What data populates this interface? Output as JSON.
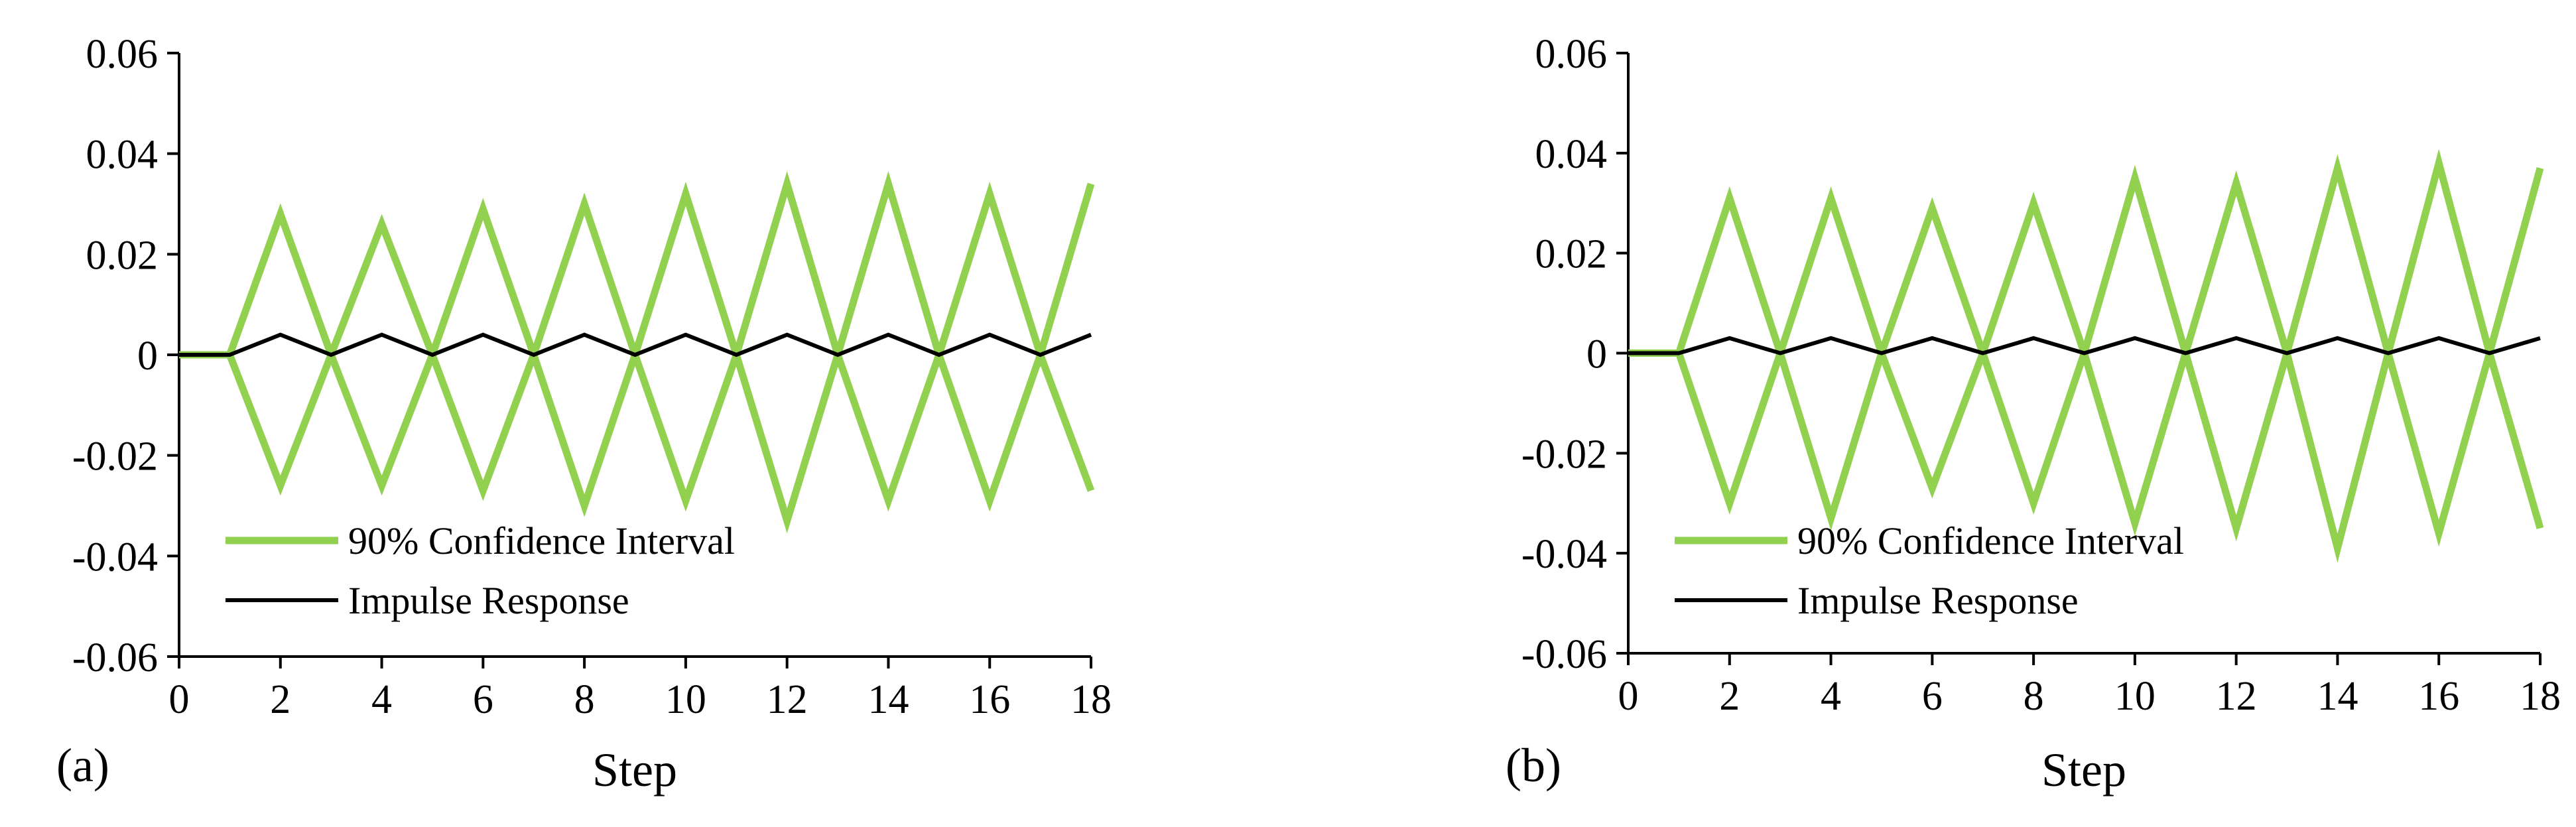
{
  "colors": {
    "ci": "#92d050",
    "impulse": "#000000",
    "axis": "#000000"
  },
  "chart_data": [
    {
      "panel_label": "(a)",
      "type": "line",
      "xlabel": "Step",
      "ylabel": "",
      "xlim": [
        0,
        18
      ],
      "ylim": [
        -0.06,
        0.06
      ],
      "x_ticks": [
        "0",
        "2",
        "4",
        "6",
        "8",
        "10",
        "12",
        "14",
        "16",
        "18"
      ],
      "y_ticks": [
        "0.06",
        "0.04",
        "0.02",
        "0",
        "-0.02",
        "-0.04",
        "-0.06"
      ],
      "legend": {
        "position": "bottom-left",
        "entries": [
          "90% Confidence Interval",
          "Impulse Response"
        ]
      },
      "x": [
        1,
        2,
        3,
        4,
        5,
        6,
        7,
        8,
        9,
        10,
        11,
        12,
        13,
        14,
        15,
        16,
        17,
        18
      ],
      "series": [
        {
          "name": "90% Confidence Interval",
          "role": "upper",
          "x": [
            0,
            1,
            2,
            3,
            4,
            5,
            6,
            7,
            8,
            9,
            10,
            11,
            12,
            13,
            14,
            15,
            16,
            17,
            18
          ],
          "values": [
            0,
            0,
            0.028,
            0,
            0.026,
            0,
            0.029,
            0,
            0.03,
            0,
            0.032,
            0,
            0.034,
            0,
            0.034,
            0,
            0.032,
            0,
            0.034
          ]
        },
        {
          "name": "90% Confidence Interval",
          "role": "lower",
          "x": [
            0,
            1,
            2,
            3,
            4,
            5,
            6,
            7,
            8,
            9,
            10,
            11,
            12,
            13,
            14,
            15,
            16,
            17,
            18
          ],
          "values": [
            0,
            0,
            -0.026,
            0,
            -0.026,
            0,
            -0.027,
            0,
            -0.03,
            0,
            -0.029,
            0,
            -0.033,
            0,
            -0.029,
            0,
            -0.029,
            0,
            -0.027
          ]
        },
        {
          "name": "Impulse Response",
          "role": "impulse",
          "x": [
            0,
            1,
            2,
            3,
            4,
            5,
            6,
            7,
            8,
            9,
            10,
            11,
            12,
            13,
            14,
            15,
            16,
            17,
            18
          ],
          "values": [
            0,
            0,
            0.004,
            0,
            0.004,
            0,
            0.004,
            0,
            0.004,
            0,
            0.004,
            0,
            0.004,
            0,
            0.004,
            0,
            0.004,
            0,
            0.004
          ]
        }
      ]
    },
    {
      "panel_label": "(b)",
      "type": "line",
      "xlabel": "Step",
      "ylabel": "",
      "xlim": [
        0,
        18
      ],
      "ylim": [
        -0.06,
        0.06
      ],
      "x_ticks": [
        "0",
        "2",
        "4",
        "6",
        "8",
        "10",
        "12",
        "14",
        "16",
        "18"
      ],
      "y_ticks": [
        "0.06",
        "0.04",
        "0.02",
        "0",
        "-0.02",
        "-0.04",
        "-0.06"
      ],
      "legend": {
        "position": "bottom-left",
        "entries": [
          "90% Confidence Interval",
          "Impulse Response"
        ]
      },
      "x": [
        1,
        2,
        3,
        4,
        5,
        6,
        7,
        8,
        9,
        10,
        11,
        12,
        13,
        14,
        15,
        16,
        17,
        18
      ],
      "series": [
        {
          "name": "90% Confidence Interval",
          "role": "upper",
          "x": [
            0,
            1,
            2,
            3,
            4,
            5,
            6,
            7,
            8,
            9,
            10,
            11,
            12,
            13,
            14,
            15,
            16,
            17,
            18
          ],
          "values": [
            0,
            0,
            0.031,
            0,
            0.031,
            0,
            0.029,
            0,
            0.03,
            0,
            0.035,
            0,
            0.034,
            0,
            0.037,
            0,
            0.038,
            0,
            0.037
          ]
        },
        {
          "name": "90% Confidence Interval",
          "role": "lower",
          "x": [
            0,
            1,
            2,
            3,
            4,
            5,
            6,
            7,
            8,
            9,
            10,
            11,
            12,
            13,
            14,
            15,
            16,
            17,
            18
          ],
          "values": [
            0,
            0,
            -0.03,
            0,
            -0.033,
            0,
            -0.027,
            0,
            -0.03,
            0,
            -0.034,
            0,
            -0.035,
            0,
            -0.039,
            0,
            -0.036,
            0,
            -0.035
          ]
        },
        {
          "name": "Impulse Response",
          "role": "impulse",
          "x": [
            0,
            1,
            2,
            3,
            4,
            5,
            6,
            7,
            8,
            9,
            10,
            11,
            12,
            13,
            14,
            15,
            16,
            17,
            18
          ],
          "values": [
            0,
            0,
            0.003,
            0,
            0.003,
            0,
            0.003,
            0,
            0.003,
            0,
            0.003,
            0,
            0.003,
            0,
            0.003,
            0,
            0.003,
            0,
            0.003
          ]
        }
      ]
    }
  ]
}
